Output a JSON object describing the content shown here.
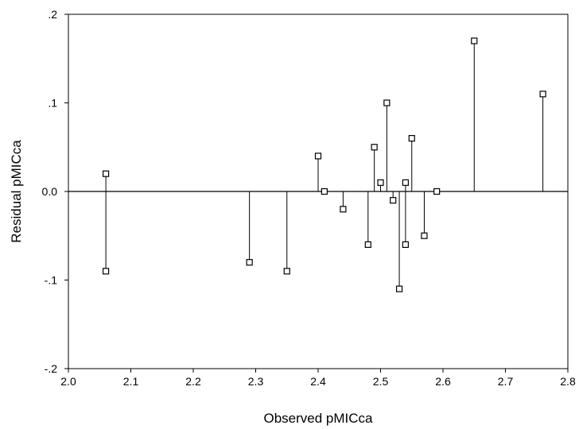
{
  "chart_data": {
    "type": "scatter",
    "title": "",
    "xlabel": "Observed pMICca",
    "ylabel": "Residual pMICca",
    "xlim": [
      2.0,
      2.8
    ],
    "ylim": [
      -0.2,
      0.2
    ],
    "x_ticks": [
      2.0,
      2.1,
      2.2,
      2.3,
      2.4,
      2.5,
      2.6,
      2.7,
      2.8
    ],
    "x_tick_labels": [
      "2.0",
      "2.1",
      "2.2",
      "2.3",
      "2.4",
      "2.5",
      "2.6",
      "2.7",
      "2.8"
    ],
    "y_ticks": [
      -0.2,
      -0.1,
      0.0,
      0.1,
      0.2
    ],
    "y_tick_labels": [
      "-.2",
      "-.1",
      "0.0",
      ".1",
      ".2"
    ],
    "reference_line_y": 0.0,
    "marker": "open-square",
    "drop_lines_to_reference": true,
    "grid": false,
    "legend": "none",
    "points": [
      {
        "x": 2.06,
        "y": 0.02
      },
      {
        "x": 2.06,
        "y": -0.09
      },
      {
        "x": 2.29,
        "y": -0.08
      },
      {
        "x": 2.35,
        "y": -0.09
      },
      {
        "x": 2.4,
        "y": 0.04
      },
      {
        "x": 2.41,
        "y": 0.0
      },
      {
        "x": 2.44,
        "y": -0.02
      },
      {
        "x": 2.48,
        "y": -0.06
      },
      {
        "x": 2.49,
        "y": 0.05
      },
      {
        "x": 2.5,
        "y": 0.01
      },
      {
        "x": 2.51,
        "y": 0.1
      },
      {
        "x": 2.52,
        "y": -0.01
      },
      {
        "x": 2.53,
        "y": -0.11
      },
      {
        "x": 2.54,
        "y": 0.01
      },
      {
        "x": 2.54,
        "y": -0.06
      },
      {
        "x": 2.55,
        "y": 0.06
      },
      {
        "x": 2.57,
        "y": -0.05
      },
      {
        "x": 2.59,
        "y": 0.0
      },
      {
        "x": 2.65,
        "y": 0.17
      },
      {
        "x": 2.76,
        "y": 0.11
      }
    ],
    "colors": {
      "axis": "#000000",
      "marker_stroke": "#000000",
      "marker_fill": "#ffffff",
      "background": "#ffffff"
    }
  }
}
